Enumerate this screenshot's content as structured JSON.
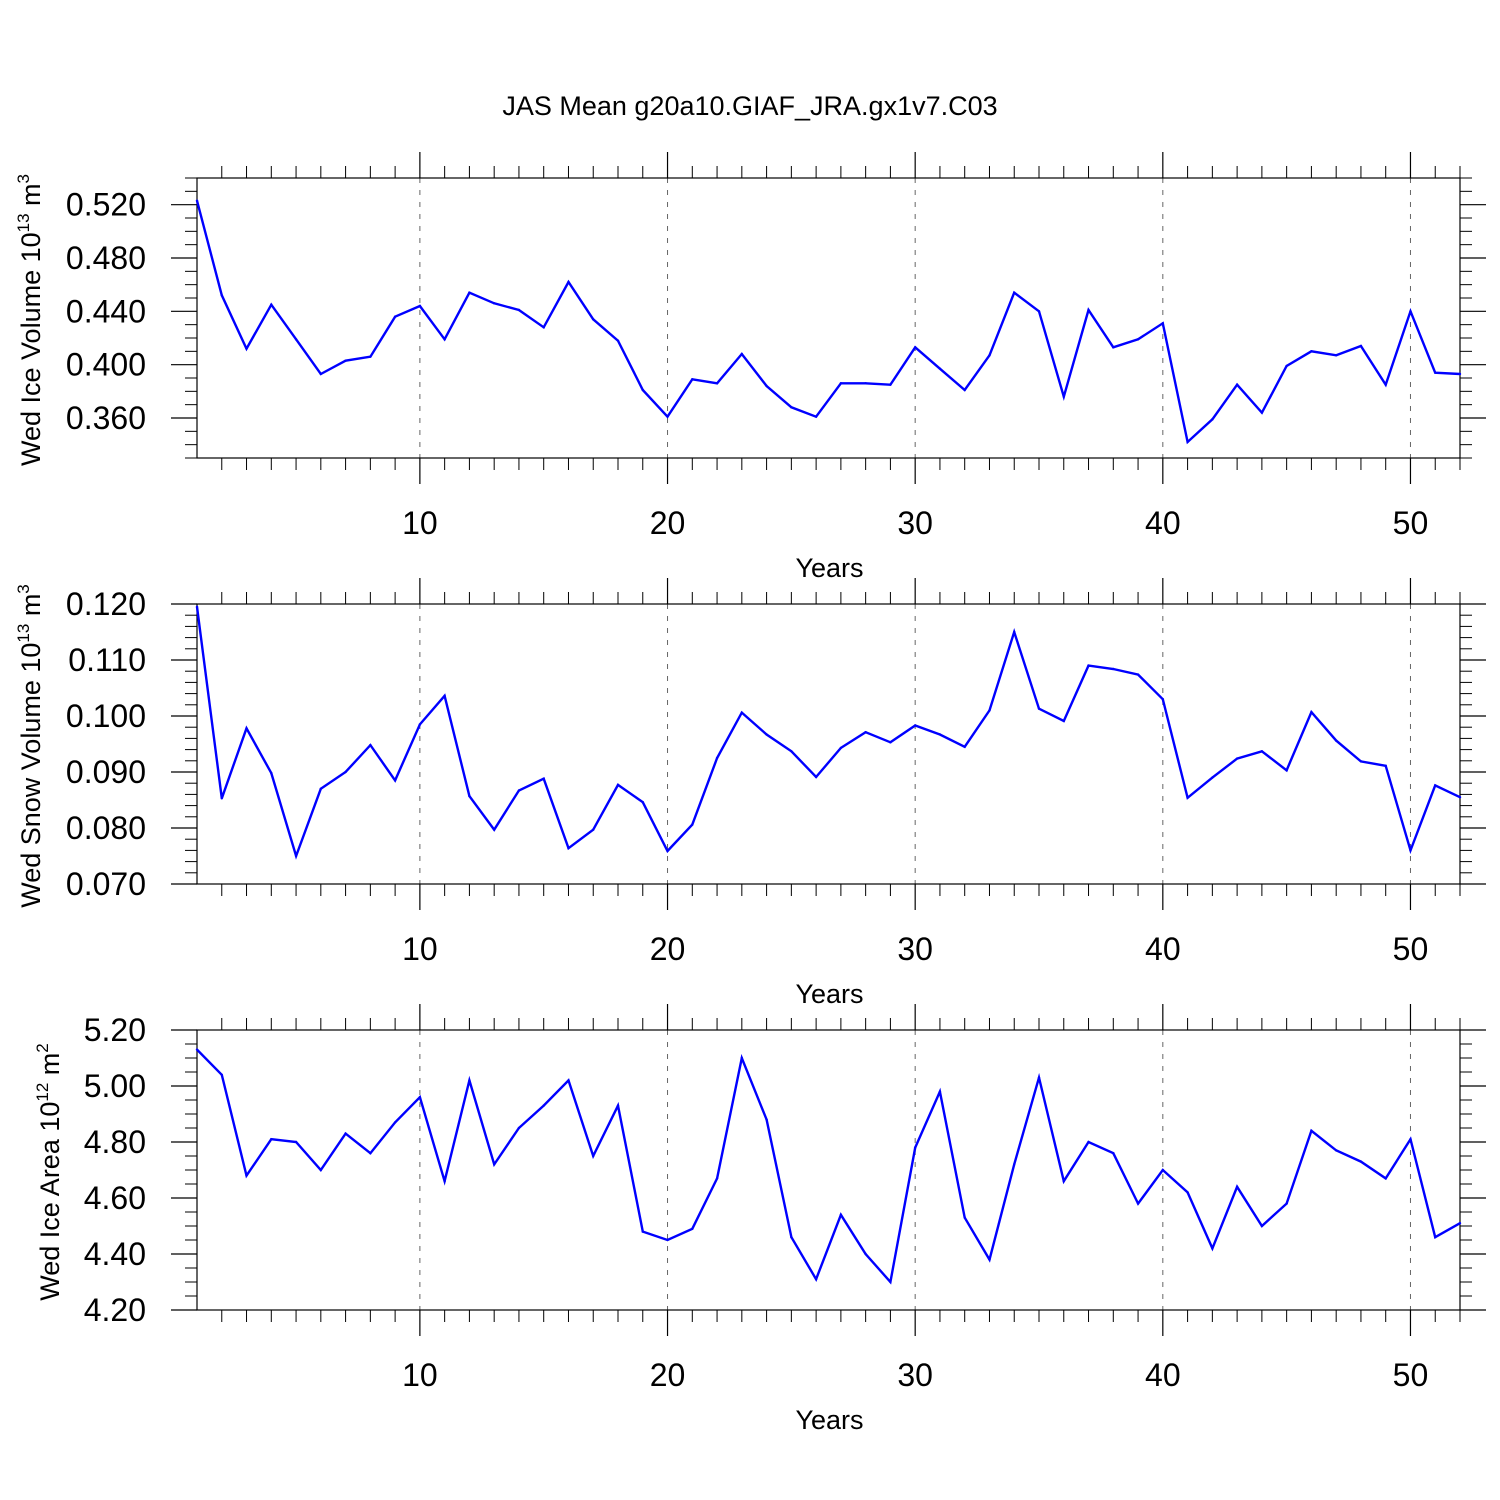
{
  "title": "JAS Mean g20a10.GIAF_JRA.gx1v7.C03",
  "colors": {
    "series": "#0000ff",
    "axis": "#000000",
    "grid": "#666666"
  },
  "chart_data": [
    {
      "type": "line",
      "name": "ice-volume",
      "xlabel": "Years",
      "ylabel_text": "Wed Ice Volume 10",
      "ylabel_sup1": "13",
      "ylabel_mid": " m",
      "ylabel_sup2": "3",
      "xlim": [
        1,
        52
      ],
      "ylim": [
        0.33,
        0.54
      ],
      "yticks": [
        0.36,
        0.4,
        0.44,
        0.48,
        0.52
      ],
      "ytick_labels": [
        "0.360",
        "0.400",
        "0.440",
        "0.480",
        "0.520"
      ],
      "yminor_step": 0.01,
      "xticks": [
        10,
        20,
        30,
        40,
        50
      ],
      "xtick_labels": [
        "10",
        "20",
        "30",
        "40",
        "50"
      ],
      "grid": "vertical-dashed",
      "x": [
        1,
        2,
        3,
        4,
        5,
        6,
        7,
        8,
        9,
        10,
        11,
        12,
        13,
        14,
        15,
        16,
        17,
        18,
        19,
        20,
        21,
        22,
        23,
        24,
        25,
        26,
        27,
        28,
        29,
        30,
        31,
        32,
        33,
        34,
        35,
        36,
        37,
        38,
        39,
        40,
        41,
        42,
        43,
        44,
        45,
        46,
        47,
        48,
        49,
        50,
        51,
        52
      ],
      "values": [
        0.523,
        0.452,
        0.412,
        0.445,
        0.419,
        0.393,
        0.403,
        0.406,
        0.436,
        0.444,
        0.419,
        0.454,
        0.446,
        0.441,
        0.428,
        0.462,
        0.434,
        0.418,
        0.381,
        0.361,
        0.389,
        0.386,
        0.408,
        0.384,
        0.368,
        0.361,
        0.386,
        0.386,
        0.385,
        0.413,
        0.397,
        0.381,
        0.407,
        0.454,
        0.44,
        0.376,
        0.441,
        0.413,
        0.419,
        0.431,
        0.342,
        0.359,
        0.385,
        0.364,
        0.399,
        0.41,
        0.407,
        0.414,
        0.385,
        0.44,
        0.394,
        0.393
      ]
    },
    {
      "type": "line",
      "name": "snow-volume",
      "xlabel": "Years",
      "ylabel_text": "Wed Snow Volume 10",
      "ylabel_sup1": "13",
      "ylabel_mid": " m",
      "ylabel_sup2": "3",
      "xlim": [
        1,
        52
      ],
      "ylim": [
        0.07,
        0.12
      ],
      "yticks": [
        0.07,
        0.08,
        0.09,
        0.1,
        0.11,
        0.12
      ],
      "ytick_labels": [
        "0.070",
        "0.080",
        "0.090",
        "0.100",
        "0.110",
        "0.120"
      ],
      "yminor_step": 0.002,
      "xticks": [
        10,
        20,
        30,
        40,
        50
      ],
      "xtick_labels": [
        "10",
        "20",
        "30",
        "40",
        "50"
      ],
      "grid": "vertical-dashed",
      "x": [
        1,
        2,
        3,
        4,
        5,
        6,
        7,
        8,
        9,
        10,
        11,
        12,
        13,
        14,
        15,
        16,
        17,
        18,
        19,
        20,
        21,
        22,
        23,
        24,
        25,
        26,
        27,
        28,
        29,
        30,
        31,
        32,
        33,
        34,
        35,
        36,
        37,
        38,
        39,
        40,
        41,
        42,
        43,
        44,
        45,
        46,
        47,
        48,
        49,
        50,
        51,
        52
      ],
      "values": [
        0.1195,
        0.0853,
        0.0978,
        0.0898,
        0.075,
        0.087,
        0.09,
        0.0948,
        0.0885,
        0.0985,
        0.1036,
        0.0857,
        0.0797,
        0.0867,
        0.0888,
        0.0764,
        0.0797,
        0.0877,
        0.0846,
        0.0759,
        0.0806,
        0.0925,
        0.1006,
        0.0967,
        0.0937,
        0.0891,
        0.0943,
        0.0971,
        0.0953,
        0.0983,
        0.0967,
        0.0945,
        0.101,
        0.115,
        0.1013,
        0.0991,
        0.109,
        0.1084,
        0.1074,
        0.103,
        0.0854,
        0.089,
        0.0924,
        0.0937,
        0.0903,
        0.1007,
        0.0956,
        0.0919,
        0.0911,
        0.076,
        0.0876,
        0.0855
      ]
    },
    {
      "type": "line",
      "name": "ice-area",
      "xlabel": "Years",
      "ylabel_text": "Wed Ice Area 10",
      "ylabel_sup1": "12",
      "ylabel_mid": " m",
      "ylabel_sup2": "2",
      "xlim": [
        1,
        52
      ],
      "ylim": [
        4.2,
        5.2
      ],
      "yticks": [
        4.2,
        4.4,
        4.6,
        4.8,
        5.0,
        5.2
      ],
      "ytick_labels": [
        "4.20",
        "4.40",
        "4.60",
        "4.80",
        "5.00",
        "5.20"
      ],
      "yminor_step": 0.05,
      "xticks": [
        10,
        20,
        30,
        40,
        50
      ],
      "xtick_labels": [
        "10",
        "20",
        "30",
        "40",
        "50"
      ],
      "grid": "vertical-dashed",
      "x": [
        1,
        2,
        3,
        4,
        5,
        6,
        7,
        8,
        9,
        10,
        11,
        12,
        13,
        14,
        15,
        16,
        17,
        18,
        19,
        20,
        21,
        22,
        23,
        24,
        25,
        26,
        27,
        28,
        29,
        30,
        31,
        32,
        33,
        34,
        35,
        36,
        37,
        38,
        39,
        40,
        41,
        42,
        43,
        44,
        45,
        46,
        47,
        48,
        49,
        50,
        51,
        52
      ],
      "values": [
        5.13,
        5.04,
        4.68,
        4.81,
        4.8,
        4.7,
        4.83,
        4.76,
        4.87,
        4.96,
        4.66,
        5.02,
        4.72,
        4.85,
        4.93,
        5.02,
        4.75,
        4.93,
        4.48,
        4.45,
        4.49,
        4.67,
        5.1,
        4.88,
        4.46,
        4.31,
        4.54,
        4.4,
        4.3,
        4.78,
        4.98,
        4.53,
        4.38,
        4.72,
        5.03,
        4.66,
        4.8,
        4.76,
        4.58,
        4.7,
        4.62,
        4.42,
        4.64,
        4.5,
        4.58,
        4.84,
        4.77,
        4.73,
        4.67,
        4.81,
        4.46,
        4.51
      ]
    }
  ]
}
